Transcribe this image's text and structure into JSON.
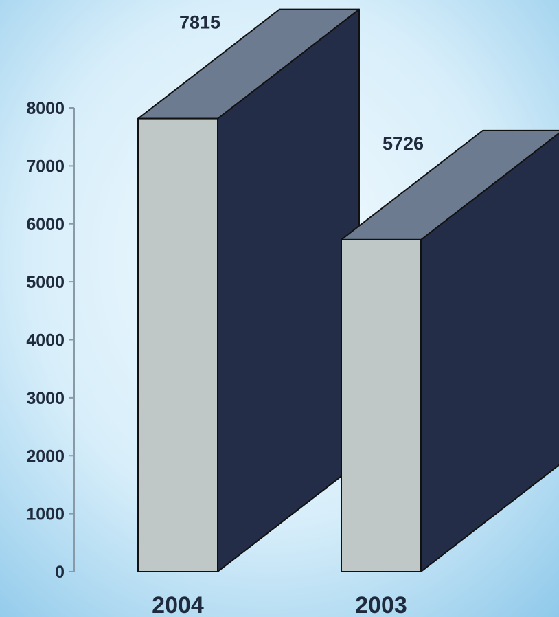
{
  "chart_data": {
    "type": "bar",
    "categories": [
      "2004",
      "2003"
    ],
    "values": [
      7815,
      5726
    ],
    "title": "",
    "xlabel": "",
    "ylabel": "",
    "ylim": [
      0,
      8000
    ],
    "yticks": [
      0,
      1000,
      2000,
      3000,
      4000,
      5000,
      6000,
      7000,
      8000
    ],
    "data_labels": [
      "7815",
      "5726"
    ],
    "grid": false,
    "legend": "none",
    "style": "3d-block",
    "colors": {
      "background_center": "#f4fbff",
      "background_edge": "#8fc9ea",
      "bar_front": "#bfc8c6",
      "bar_top": "#6c7b90",
      "bar_side": "#232d47",
      "outline": "#111111",
      "axis": "#8899a8",
      "text": "#1f2a3c"
    }
  }
}
